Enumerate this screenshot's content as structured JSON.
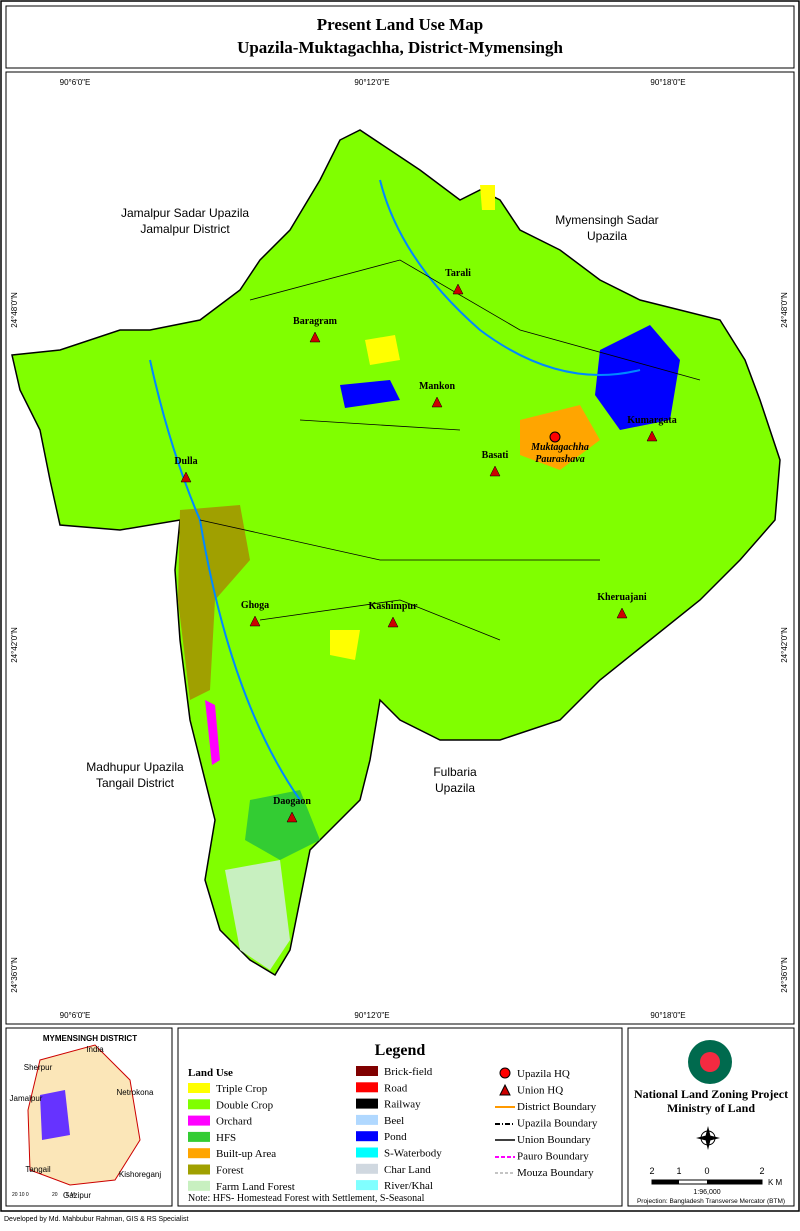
{
  "header": {
    "title": "Present Land Use Map",
    "subtitle": "Upazila-Muktagachha, District-Mymensingh"
  },
  "graticule": {
    "longitudes": [
      "90°6'0\"E",
      "90°12'0\"E",
      "90°18'0\"E"
    ],
    "latitudes": [
      "24°48'0\"N",
      "24°42'0\"N",
      "24°36'0\"N"
    ]
  },
  "neighbours": [
    {
      "lines": [
        "Jamalpur Sadar Upazila",
        "Jamalpur District"
      ]
    },
    {
      "lines": [
        "Mymensingh Sadar",
        "Upazila"
      ]
    },
    {
      "lines": [
        "Madhupur Upazila",
        "Tangail District"
      ]
    },
    {
      "lines": [
        "Fulbaria",
        "Upazila"
      ]
    }
  ],
  "unions": [
    "Tarali",
    "Baragram",
    "Mankon",
    "Kumargata",
    "Basati",
    "Dulla",
    "Ghoga",
    "Kashimpur",
    "Kheruajani",
    "Daogaon"
  ],
  "upazila_hq": {
    "lines": [
      "Muktagachha",
      "Paurashava"
    ]
  },
  "inset": {
    "title": "MYMENSINGH DISTRICT",
    "places": [
      "India",
      "Sherpur",
      "Netrokona",
      "Jamalpur",
      "Tangail",
      "Kishoreganj",
      "Gazipur"
    ],
    "scale": [
      "20 10  0",
      "20",
      "K M"
    ]
  },
  "legend": {
    "title": "Legend",
    "land_use_heading": "Land Use",
    "land_use": [
      {
        "label": "Triple Crop",
        "color": "#ffff00"
      },
      {
        "label": "Double Crop",
        "color": "#80ff00"
      },
      {
        "label": "Orchard",
        "color": "#ff00ff"
      },
      {
        "label": "HFS",
        "color": "#33cc33"
      },
      {
        "label": "Built-up Area",
        "color": "#ffa500"
      },
      {
        "label": "Forest",
        "color": "#a0a000"
      },
      {
        "label": "Farm Land Forest",
        "color": "#c8f0c0"
      }
    ],
    "other": [
      {
        "label": "Brick-field",
        "color": "#800000"
      },
      {
        "label": "Road",
        "color": "#ff0000"
      },
      {
        "label": "Railway",
        "color": "#000000"
      },
      {
        "label": "Beel",
        "color": "#b0d8ff"
      },
      {
        "label": "Pond",
        "color": "#0000ff"
      },
      {
        "label": "S-Waterbody",
        "color": "#00ffff"
      },
      {
        "label": "Char Land",
        "color": "#d0d8e0"
      },
      {
        "label": "River/Khal",
        "color": "#80ffff"
      }
    ],
    "symbols": [
      "Upazila HQ",
      "Union HQ",
      "District Boundary",
      "Upazila Boundary",
      "Union Boundary",
      "Pauro Boundary",
      "Mouza Boundary"
    ],
    "note": "Note: HFS- Homestead Forest with Settlement, S-Seasonal"
  },
  "project": {
    "name": "National Land Zoning Project",
    "ministry": "Ministry of Land"
  },
  "scale": {
    "ticks": [
      "2",
      "1",
      "0",
      "2"
    ],
    "unit": "K M",
    "ratio": "1:96,000",
    "projection": "Projection: Bangladesh Transverse Mercator (BTM)"
  },
  "footer": "Developed by Md. Mahbubur Rahman, GIS & RS Specialist"
}
